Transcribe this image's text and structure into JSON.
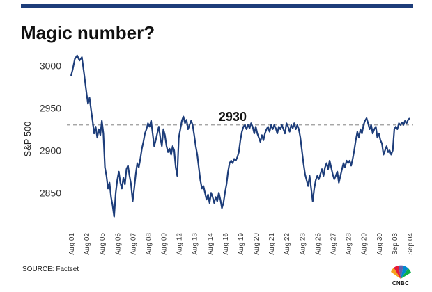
{
  "header": {
    "title": "Magic number?"
  },
  "footer": {
    "source": "SOURCE: Factset",
    "logo_text": "CNBC"
  },
  "chart_data": {
    "type": "line",
    "title": "Magic number?",
    "ylabel": "S&P 500",
    "xlabel": "",
    "ylim": [
      2815,
      3020
    ],
    "yticks": [
      2850,
      2900,
      2950,
      3000
    ],
    "grid": false,
    "reference_line": {
      "value": 2930,
      "label": "2930",
      "style": "dashed"
    },
    "categories": [
      "Aug 01",
      "Aug 02",
      "Aug 05",
      "Aug 06",
      "Aug 07",
      "Aug 08",
      "Aug 09",
      "Aug 12",
      "Aug 13",
      "Aug 14",
      "Aug 16",
      "Aug 19",
      "Aug 20",
      "Aug 21",
      "Aug 22",
      "Aug 23",
      "Aug 26",
      "Aug 27",
      "Aug 28",
      "Aug 29",
      "Aug 30",
      "Sep 03",
      "Sep 04"
    ],
    "series": [
      {
        "color": "#1d3d7a",
        "points": [
          [
            0.0,
            2988
          ],
          [
            0.1,
            2995
          ],
          [
            0.25,
            3008
          ],
          [
            0.4,
            3012
          ],
          [
            0.55,
            3006
          ],
          [
            0.7,
            3010
          ],
          [
            0.85,
            2990
          ],
          [
            1.0,
            2968
          ],
          [
            1.1,
            2955
          ],
          [
            1.2,
            2962
          ],
          [
            1.3,
            2948
          ],
          [
            1.4,
            2935
          ],
          [
            1.5,
            2920
          ],
          [
            1.6,
            2928
          ],
          [
            1.7,
            2915
          ],
          [
            1.8,
            2925
          ],
          [
            1.9,
            2918
          ],
          [
            2.0,
            2935
          ],
          [
            2.1,
            2920
          ],
          [
            2.2,
            2880
          ],
          [
            2.3,
            2870
          ],
          [
            2.4,
            2855
          ],
          [
            2.5,
            2862
          ],
          [
            2.6,
            2845
          ],
          [
            2.7,
            2835
          ],
          [
            2.8,
            2822
          ],
          [
            2.9,
            2850
          ],
          [
            3.0,
            2865
          ],
          [
            3.1,
            2875
          ],
          [
            3.2,
            2862
          ],
          [
            3.3,
            2855
          ],
          [
            3.4,
            2868
          ],
          [
            3.5,
            2860
          ],
          [
            3.6,
            2878
          ],
          [
            3.7,
            2882
          ],
          [
            3.8,
            2870
          ],
          [
            3.9,
            2860
          ],
          [
            4.0,
            2840
          ],
          [
            4.1,
            2855
          ],
          [
            4.2,
            2872
          ],
          [
            4.3,
            2885
          ],
          [
            4.4,
            2880
          ],
          [
            4.5,
            2890
          ],
          [
            4.6,
            2902
          ],
          [
            4.7,
            2910
          ],
          [
            4.8,
            2920
          ],
          [
            4.9,
            2925
          ],
          [
            5.0,
            2932
          ],
          [
            5.1,
            2928
          ],
          [
            5.2,
            2935
          ],
          [
            5.3,
            2920
          ],
          [
            5.4,
            2905
          ],
          [
            5.5,
            2912
          ],
          [
            5.6,
            2920
          ],
          [
            5.7,
            2928
          ],
          [
            5.8,
            2915
          ],
          [
            5.9,
            2905
          ],
          [
            6.0,
            2925
          ],
          [
            6.1,
            2918
          ],
          [
            6.2,
            2905
          ],
          [
            6.3,
            2898
          ],
          [
            6.4,
            2902
          ],
          [
            6.5,
            2895
          ],
          [
            6.6,
            2905
          ],
          [
            6.7,
            2900
          ],
          [
            6.8,
            2880
          ],
          [
            6.9,
            2870
          ],
          [
            7.0,
            2915
          ],
          [
            7.1,
            2925
          ],
          [
            7.2,
            2935
          ],
          [
            7.3,
            2940
          ],
          [
            7.4,
            2932
          ],
          [
            7.5,
            2936
          ],
          [
            7.6,
            2925
          ],
          [
            7.7,
            2930
          ],
          [
            7.8,
            2935
          ],
          [
            7.9,
            2930
          ],
          [
            8.0,
            2918
          ],
          [
            8.1,
            2905
          ],
          [
            8.2,
            2895
          ],
          [
            8.3,
            2880
          ],
          [
            8.4,
            2865
          ],
          [
            8.5,
            2855
          ],
          [
            8.6,
            2858
          ],
          [
            8.7,
            2850
          ],
          [
            8.8,
            2842
          ],
          [
            8.9,
            2848
          ],
          [
            9.0,
            2838
          ],
          [
            9.1,
            2850
          ],
          [
            9.2,
            2845
          ],
          [
            9.3,
            2838
          ],
          [
            9.4,
            2845
          ],
          [
            9.5,
            2840
          ],
          [
            9.6,
            2850
          ],
          [
            9.7,
            2842
          ],
          [
            9.8,
            2832
          ],
          [
            9.9,
            2838
          ],
          [
            10.0,
            2850
          ],
          [
            10.1,
            2860
          ],
          [
            10.2,
            2875
          ],
          [
            10.3,
            2885
          ],
          [
            10.4,
            2888
          ],
          [
            10.5,
            2885
          ],
          [
            10.6,
            2890
          ],
          [
            10.7,
            2888
          ],
          [
            10.8,
            2892
          ],
          [
            10.9,
            2898
          ],
          [
            11.0,
            2912
          ],
          [
            11.1,
            2922
          ],
          [
            11.2,
            2928
          ],
          [
            11.3,
            2930
          ],
          [
            11.4,
            2925
          ],
          [
            11.5,
            2930
          ],
          [
            11.6,
            2926
          ],
          [
            11.7,
            2932
          ],
          [
            11.8,
            2928
          ],
          [
            11.9,
            2920
          ],
          [
            12.0,
            2928
          ],
          [
            12.1,
            2920
          ],
          [
            12.2,
            2915
          ],
          [
            12.3,
            2910
          ],
          [
            12.4,
            2918
          ],
          [
            12.5,
            2912
          ],
          [
            12.6,
            2920
          ],
          [
            12.7,
            2925
          ],
          [
            12.8,
            2928
          ],
          [
            12.9,
            2922
          ],
          [
            13.0,
            2930
          ],
          [
            13.1,
            2925
          ],
          [
            13.2,
            2930
          ],
          [
            13.3,
            2926
          ],
          [
            13.4,
            2920
          ],
          [
            13.5,
            2928
          ],
          [
            13.6,
            2925
          ],
          [
            13.7,
            2930
          ],
          [
            13.8,
            2925
          ],
          [
            13.9,
            2920
          ],
          [
            14.0,
            2932
          ],
          [
            14.1,
            2928
          ],
          [
            14.2,
            2922
          ],
          [
            14.3,
            2930
          ],
          [
            14.4,
            2926
          ],
          [
            14.5,
            2932
          ],
          [
            14.6,
            2925
          ],
          [
            14.7,
            2930
          ],
          [
            14.8,
            2925
          ],
          [
            14.9,
            2915
          ],
          [
            15.0,
            2900
          ],
          [
            15.1,
            2885
          ],
          [
            15.2,
            2872
          ],
          [
            15.3,
            2865
          ],
          [
            15.4,
            2858
          ],
          [
            15.5,
            2870
          ],
          [
            15.6,
            2855
          ],
          [
            15.7,
            2840
          ],
          [
            15.8,
            2855
          ],
          [
            15.9,
            2865
          ],
          [
            16.0,
            2870
          ],
          [
            16.1,
            2866
          ],
          [
            16.2,
            2872
          ],
          [
            16.3,
            2878
          ],
          [
            16.4,
            2870
          ],
          [
            16.5,
            2880
          ],
          [
            16.6,
            2885
          ],
          [
            16.7,
            2878
          ],
          [
            16.8,
            2888
          ],
          [
            16.9,
            2880
          ],
          [
            17.0,
            2872
          ],
          [
            17.1,
            2866
          ],
          [
            17.2,
            2870
          ],
          [
            17.3,
            2875
          ],
          [
            17.4,
            2862
          ],
          [
            17.5,
            2870
          ],
          [
            17.6,
            2878
          ],
          [
            17.7,
            2885
          ],
          [
            17.8,
            2880
          ],
          [
            17.9,
            2888
          ],
          [
            18.0,
            2885
          ],
          [
            18.1,
            2888
          ],
          [
            18.2,
            2882
          ],
          [
            18.3,
            2890
          ],
          [
            18.4,
            2900
          ],
          [
            18.5,
            2912
          ],
          [
            18.6,
            2922
          ],
          [
            18.7,
            2915
          ],
          [
            18.8,
            2925
          ],
          [
            18.9,
            2920
          ],
          [
            19.0,
            2930
          ],
          [
            19.1,
            2935
          ],
          [
            19.2,
            2938
          ],
          [
            19.3,
            2932
          ],
          [
            19.4,
            2925
          ],
          [
            19.5,
            2930
          ],
          [
            19.6,
            2920
          ],
          [
            19.7,
            2925
          ],
          [
            19.8,
            2928
          ],
          [
            19.9,
            2915
          ],
          [
            20.0,
            2920
          ],
          [
            20.1,
            2912
          ],
          [
            20.2,
            2908
          ],
          [
            20.3,
            2895
          ],
          [
            20.4,
            2900
          ],
          [
            20.5,
            2905
          ],
          [
            20.6,
            2898
          ],
          [
            20.7,
            2900
          ],
          [
            20.8,
            2895
          ],
          [
            20.9,
            2900
          ],
          [
            21.0,
            2925
          ],
          [
            21.1,
            2928
          ],
          [
            21.2,
            2925
          ],
          [
            21.3,
            2932
          ],
          [
            21.4,
            2930
          ],
          [
            21.5,
            2933
          ],
          [
            21.6,
            2930
          ],
          [
            21.7,
            2935
          ],
          [
            21.8,
            2932
          ],
          [
            21.9,
            2936
          ],
          [
            22.0,
            2938
          ]
        ]
      }
    ]
  }
}
